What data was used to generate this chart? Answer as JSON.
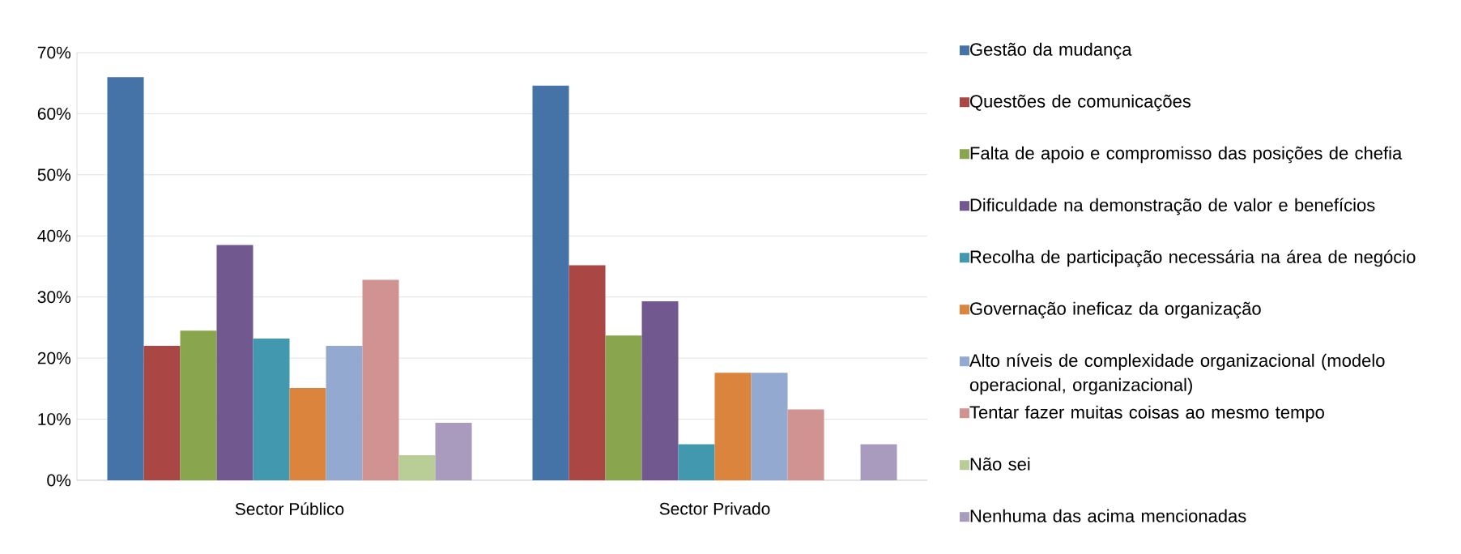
{
  "chart_data": {
    "type": "bar",
    "categories": [
      "Sector Público",
      "Sector Privado"
    ],
    "series": [
      {
        "name": "Gestão da mudança",
        "color": "#4572a7",
        "values": [
          66,
          64.6
        ]
      },
      {
        "name": "Questões de comunicações",
        "color": "#aa4643",
        "values": [
          22,
          35.2
        ]
      },
      {
        "name": "Falta de apoio e compromisso das posições de chefia",
        "color": "#89a54e",
        "values": [
          24.5,
          23.7
        ]
      },
      {
        "name": "Dificuldade na demonstração de valor e benefícios",
        "color": "#71588f",
        "values": [
          38.5,
          29.3
        ]
      },
      {
        "name": "Recolha de participação necessária na área de negócio",
        "color": "#4198af",
        "values": [
          23.2,
          5.9
        ]
      },
      {
        "name": "Governação ineficaz  da organização",
        "color": "#db843d",
        "values": [
          15.1,
          17.6
        ]
      },
      {
        "name": "Alto níveis de complexidade organizacional (modelo operacional, organizacional)",
        "color": "#93a9cf",
        "values": [
          22,
          17.6
        ]
      },
      {
        "name": "Tentar fazer muitas coisas ao mesmo tempo",
        "color": "#d19392",
        "values": [
          32.8,
          11.6
        ]
      },
      {
        "name": "Não sei",
        "color": "#b9cd96",
        "values": [
          4.1,
          0
        ]
      },
      {
        "name": "Nenhuma das acima mencionadas",
        "color": "#a99bbd",
        "values": [
          9.4,
          5.9
        ]
      }
    ],
    "ylim": [
      0,
      70
    ],
    "yticks": [
      {
        "value": 0,
        "label": "0%"
      },
      {
        "value": 10,
        "label": "10%"
      },
      {
        "value": 20,
        "label": "20%"
      },
      {
        "value": 30,
        "label": "30%"
      },
      {
        "value": 40,
        "label": "40%"
      },
      {
        "value": 50,
        "label": "50%"
      },
      {
        "value": 60,
        "label": "60%"
      },
      {
        "value": 70,
        "label": "70%"
      }
    ],
    "grid": "y",
    "legend": "right"
  }
}
